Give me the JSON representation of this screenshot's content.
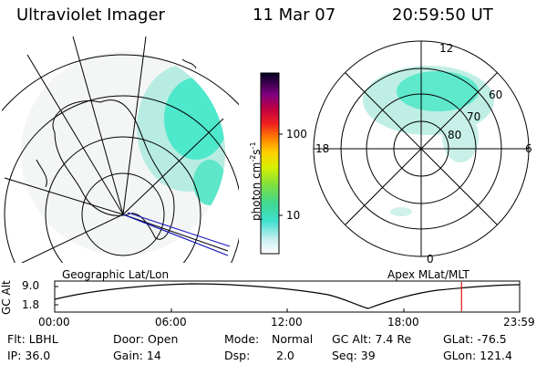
{
  "header": {
    "instrument": "Ultraviolet Imager",
    "date": "11 Mar 07",
    "time": "20:59:50 UT"
  },
  "colorbar": {
    "unit": "photon cm",
    "unit_exp1": "-2",
    "unit_mid": "s",
    "unit_exp2": "-1",
    "ticks": [
      "100",
      "10"
    ]
  },
  "panels": {
    "left_title": "Geographic Lat/Lon",
    "right_title": "Apex MLat/MLT"
  },
  "polar": {
    "mlt_labels": [
      "12",
      "18",
      "6",
      "0"
    ],
    "mlat_labels": [
      "60",
      "70",
      "80"
    ]
  },
  "altitude_plot": {
    "ylabel": "GC Alt",
    "yticks": [
      "9.0",
      "1.8"
    ],
    "xticks": [
      "00:00",
      "06:00",
      "12:00",
      "18:00",
      "23:59"
    ],
    "current_time_hours": 21.0
  },
  "info": {
    "filter": "Flt: LBHL",
    "ip": "IP: 36.0",
    "door": "Door: Open",
    "gain": "Gain: 14",
    "mode_label": "Mode:",
    "mode_value": "Normal",
    "dsp_label": "Dsp:",
    "dsp_value": "2.0",
    "gc_alt": "GC Alt: 7.4 Re",
    "seq": "Seq: 39",
    "glat": "GLat: -76.5",
    "glon": "GLon: 121.4"
  },
  "colors": {
    "aurora": "#2ee6c8",
    "aurora_light": "#9fe8dc",
    "marker": "#e01010",
    "track": "#1010c0"
  }
}
